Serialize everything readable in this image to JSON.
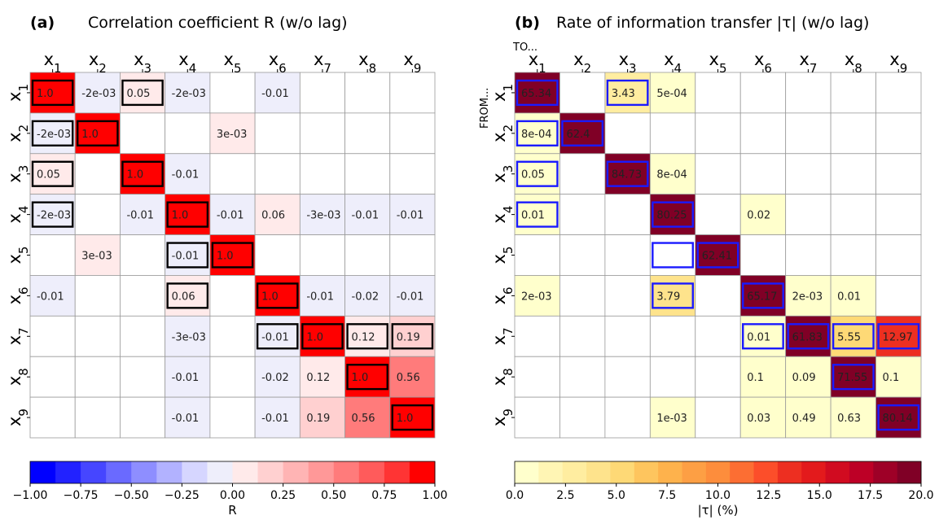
{
  "chart_data": [
    {
      "type": "heatmap",
      "panel_label": "(a)",
      "title": "Correlation coefficient R (w/o lag)",
      "rows": [
        "x1",
        "x2",
        "x3",
        "x4",
        "x5",
        "x6",
        "x7",
        "x8",
        "x9"
      ],
      "cols": [
        "x1",
        "x2",
        "x3",
        "x4",
        "x5",
        "x6",
        "x7",
        "x8",
        "x9"
      ],
      "values": [
        [
          1.0,
          -0.002,
          0.05,
          -0.002,
          null,
          -0.01,
          null,
          null,
          null
        ],
        [
          -0.002,
          1.0,
          null,
          null,
          0.003,
          null,
          null,
          null,
          null
        ],
        [
          0.05,
          null,
          1.0,
          -0.01,
          null,
          null,
          null,
          null,
          null
        ],
        [
          -0.002,
          null,
          -0.01,
          1.0,
          -0.01,
          0.06,
          -0.003,
          -0.01,
          -0.01
        ],
        [
          null,
          0.003,
          null,
          -0.01,
          1.0,
          null,
          null,
          null,
          null
        ],
        [
          -0.01,
          null,
          null,
          0.06,
          null,
          1.0,
          -0.01,
          -0.02,
          -0.01
        ],
        [
          null,
          null,
          null,
          -0.003,
          null,
          -0.01,
          1.0,
          0.12,
          0.19
        ],
        [
          null,
          null,
          null,
          -0.01,
          null,
          -0.02,
          0.12,
          1.0,
          0.56
        ],
        [
          null,
          null,
          null,
          -0.01,
          null,
          -0.01,
          0.19,
          0.56,
          1.0
        ]
      ],
      "labels": [
        [
          "1.0",
          "-2e-03",
          "0.05",
          "-2e-03",
          "",
          "-0.01",
          "",
          "",
          ""
        ],
        [
          "-2e-03",
          "1.0",
          "",
          "",
          "3e-03",
          "",
          "",
          "",
          ""
        ],
        [
          "0.05",
          "",
          "1.0",
          "-0.01",
          "",
          "",
          "",
          "",
          ""
        ],
        [
          "-2e-03",
          "",
          "-0.01",
          "1.0",
          "-0.01",
          "0.06",
          "-3e-03",
          "-0.01",
          "-0.01"
        ],
        [
          "",
          "3e-03",
          "",
          "-0.01",
          "1.0",
          "",
          "",
          "",
          ""
        ],
        [
          "-0.01",
          "",
          "",
          "0.06",
          "",
          "1.0",
          "-0.01",
          "-0.02",
          "-0.01"
        ],
        [
          "",
          "",
          "",
          "-3e-03",
          "",
          "-0.01",
          "1.0",
          "0.12",
          "0.19"
        ],
        [
          "",
          "",
          "",
          "-0.01",
          "",
          "-0.02",
          "0.12",
          "1.0",
          "0.56"
        ],
        [
          "",
          "",
          "",
          "-0.01",
          "",
          "-0.01",
          "0.19",
          "0.56",
          "1.0"
        ]
      ],
      "highlighted": [
        [
          0,
          0
        ],
        [
          0,
          2
        ],
        [
          1,
          0
        ],
        [
          1,
          1
        ],
        [
          2,
          0
        ],
        [
          2,
          2
        ],
        [
          3,
          0
        ],
        [
          3,
          3
        ],
        [
          4,
          3
        ],
        [
          4,
          4
        ],
        [
          5,
          3
        ],
        [
          5,
          5
        ],
        [
          6,
          5
        ],
        [
          6,
          6
        ],
        [
          6,
          7
        ],
        [
          6,
          8
        ],
        [
          7,
          7
        ],
        [
          8,
          8
        ]
      ],
      "highlight_color": "#000000",
      "colorbar": {
        "label": "R",
        "range": [
          -1.0,
          1.0
        ],
        "ticks": [
          "−1.00",
          "−0.75",
          "−0.50",
          "−0.25",
          "0.00",
          "0.25",
          "0.50",
          "0.75",
          "1.00"
        ],
        "colors": [
          "#0000ff",
          "#2222ff",
          "#4646ff",
          "#6a6aff",
          "#8e8eff",
          "#b2b2ff",
          "#d6d6ff",
          "#eeeefb",
          "#ffeaea",
          "#ffd0d0",
          "#ffb4b4",
          "#ff9898",
          "#ff7b7b",
          "#ff5b5b",
          "#ff3434",
          "#ff0000"
        ]
      }
    },
    {
      "type": "heatmap",
      "panel_label": "(b)",
      "title": "Rate of information transfer |τ| (w/o lag)",
      "to_label": "TO...",
      "from_label": "FROM...",
      "rows": [
        "x1",
        "x2",
        "x3",
        "x4",
        "x5",
        "x6",
        "x7",
        "x8",
        "x9"
      ],
      "cols": [
        "x1",
        "x2",
        "x3",
        "x4",
        "x5",
        "x6",
        "x7",
        "x8",
        "x9"
      ],
      "values": [
        [
          65.34,
          null,
          3.43,
          0.0005,
          null,
          null,
          null,
          null,
          null
        ],
        [
          0.0008,
          62.4,
          null,
          null,
          null,
          null,
          null,
          null,
          null
        ],
        [
          0.05,
          null,
          84.73,
          0.0008,
          null,
          null,
          null,
          null,
          null
        ],
        [
          0.01,
          null,
          null,
          80.25,
          null,
          0.02,
          null,
          null,
          null
        ],
        [
          null,
          null,
          null,
          null,
          62.41,
          null,
          null,
          null,
          null
        ],
        [
          0.002,
          null,
          null,
          3.79,
          null,
          65.17,
          0.002,
          0.01,
          null
        ],
        [
          null,
          null,
          null,
          null,
          null,
          0.01,
          61.83,
          5.55,
          12.97
        ],
        [
          null,
          null,
          null,
          null,
          null,
          0.1,
          0.09,
          71.55,
          0.1
        ],
        [
          null,
          null,
          null,
          0.001,
          null,
          0.03,
          0.49,
          0.63,
          80.14
        ]
      ],
      "labels": [
        [
          "65.34",
          "",
          "3.43",
          "5e-04",
          "",
          "",
          "",
          "",
          ""
        ],
        [
          "8e-04",
          "62.4",
          "",
          "",
          "",
          "",
          "",
          "",
          ""
        ],
        [
          "0.05",
          "",
          "84.73",
          "8e-04",
          "",
          "",
          "",
          "",
          ""
        ],
        [
          "0.01",
          "",
          "",
          "80.25",
          "",
          "0.02",
          "",
          "",
          ""
        ],
        [
          "",
          "",
          "",
          "",
          "62.41",
          "",
          "",
          "",
          ""
        ],
        [
          "2e-03",
          "",
          "",
          "3.79",
          "",
          "65.17",
          "2e-03",
          "0.01",
          ""
        ],
        [
          "",
          "",
          "",
          "",
          "",
          "0.01",
          "61.83",
          "5.55",
          "12.97"
        ],
        [
          "",
          "",
          "",
          "",
          "",
          "0.1",
          "0.09",
          "71.55",
          "0.1"
        ],
        [
          "",
          "",
          "",
          "1e-03",
          "",
          "0.03",
          "0.49",
          "0.63",
          "80.14"
        ]
      ],
      "highlighted": [
        [
          0,
          0
        ],
        [
          0,
          2
        ],
        [
          1,
          0
        ],
        [
          1,
          1
        ],
        [
          2,
          0
        ],
        [
          2,
          2
        ],
        [
          3,
          0
        ],
        [
          3,
          3
        ],
        [
          4,
          3
        ],
        [
          4,
          4
        ],
        [
          5,
          3
        ],
        [
          5,
          5
        ],
        [
          6,
          5
        ],
        [
          6,
          6
        ],
        [
          6,
          7
        ],
        [
          6,
          8
        ],
        [
          7,
          7
        ],
        [
          8,
          8
        ]
      ],
      "highlight_color": "#1a1aff",
      "colorbar": {
        "label": "|τ| (%)",
        "range": [
          0.0,
          20.0
        ],
        "ticks": [
          "0.0",
          "2.5",
          "5.0",
          "7.5",
          "10.0",
          "12.5",
          "15.0",
          "17.5",
          "20.0"
        ],
        "colors": [
          "#ffffcc",
          "#fff5b4",
          "#ffeda0",
          "#fee38c",
          "#fed976",
          "#fec55e",
          "#feb24c",
          "#fd9f44",
          "#fd8d3c",
          "#fc6e33",
          "#fc4e2a",
          "#ed2f21",
          "#e31a1c",
          "#d10b20",
          "#bd0026",
          "#9e0027",
          "#800026"
        ]
      }
    }
  ]
}
